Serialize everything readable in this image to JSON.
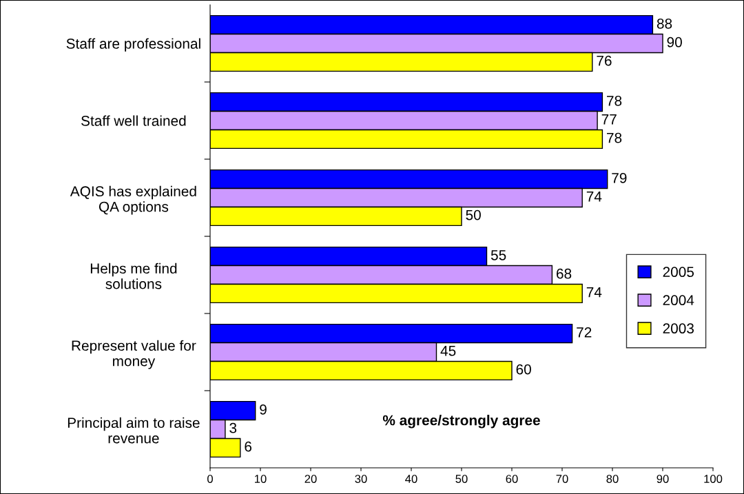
{
  "chart_data": {
    "type": "bar",
    "orientation": "horizontal",
    "categories": [
      "Staff are professional",
      "Staff well trained",
      "AQIS has explained\nQA options",
      "Helps me find\nsolutions",
      "Represent value for\nmoney",
      "Principal aim to raise\nrevenue"
    ],
    "series": [
      {
        "name": "2005",
        "color": "#0000ff",
        "values": [
          88,
          78,
          79,
          55,
          72,
          9
        ]
      },
      {
        "name": "2004",
        "color": "#cc99ff",
        "values": [
          90,
          77,
          74,
          68,
          45,
          3
        ]
      },
      {
        "name": "2003",
        "color": "#ffff00",
        "values": [
          76,
          78,
          50,
          74,
          60,
          6
        ]
      }
    ],
    "xlim": [
      0,
      100
    ],
    "xticks": [
      0,
      10,
      20,
      30,
      40,
      50,
      60,
      70,
      80,
      90,
      100
    ],
    "data_labels": true,
    "legend": "right",
    "grid": false,
    "annotations": [
      "% agree/strongly agree"
    ]
  }
}
